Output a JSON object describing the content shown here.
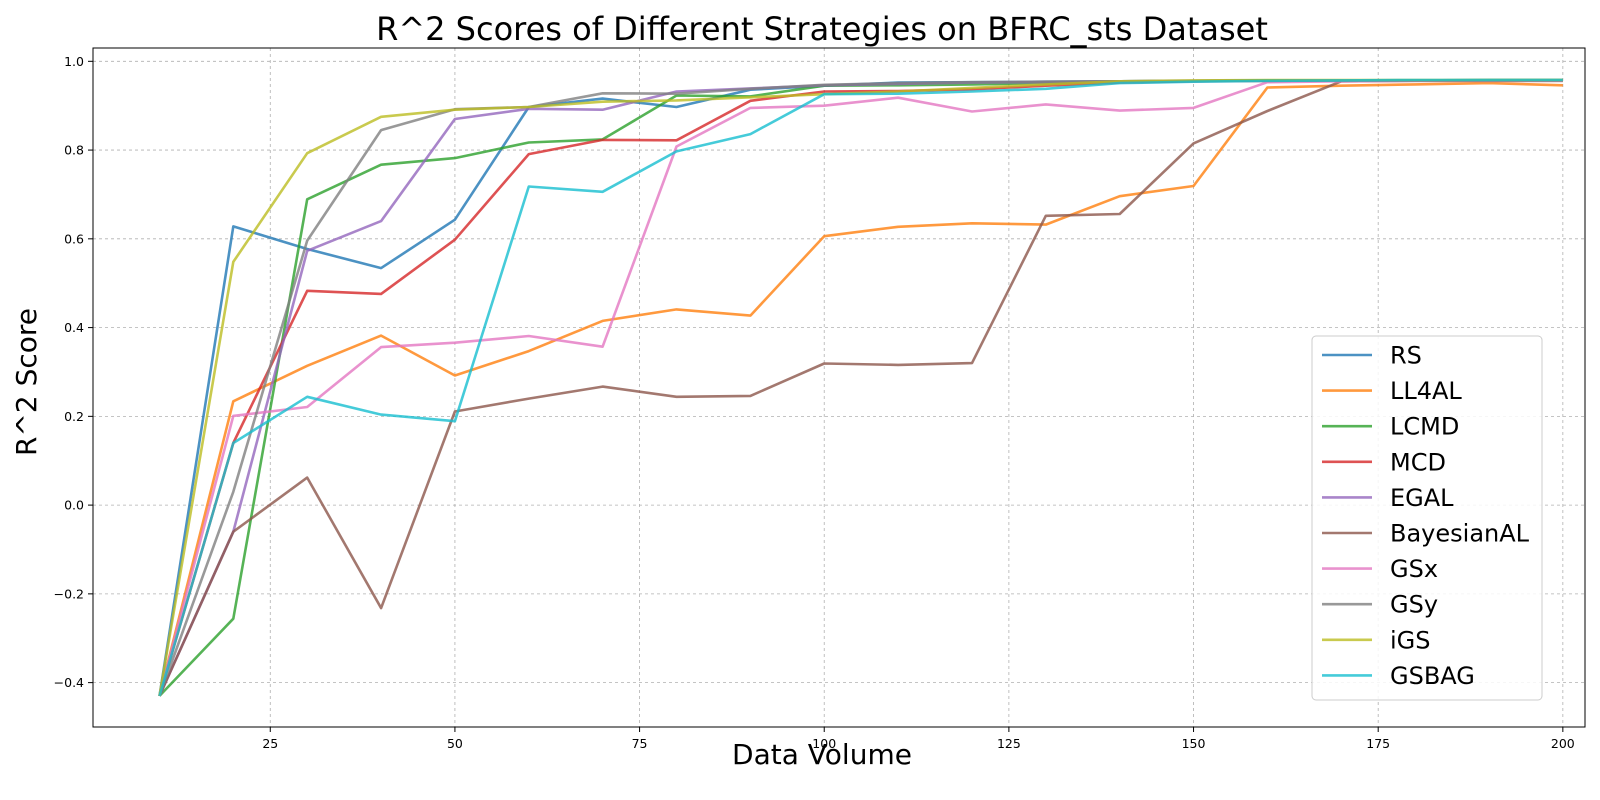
{
  "chart_data": {
    "type": "line",
    "title": "R^2 Scores of Different Strategies on BFRC_sts Dataset",
    "xlabel": "Data Volume",
    "ylabel": "R^2 Score",
    "xlim": [
      1,
      203
    ],
    "ylim": [
      -0.5,
      1.03
    ],
    "xticks": [
      25,
      50,
      75,
      100,
      125,
      150,
      175,
      200
    ],
    "yticks": [
      -0.4,
      -0.2,
      0.0,
      0.2,
      0.4,
      0.6,
      0.8,
      1.0
    ],
    "ytick_labels": [
      "−0.4",
      "−0.2",
      "0.0",
      "0.2",
      "0.4",
      "0.6",
      "0.8",
      "1.0"
    ],
    "grid": true,
    "legend_position": "lower-right",
    "x": [
      10,
      20,
      30,
      40,
      50,
      60,
      70,
      80,
      90,
      100,
      110,
      120,
      130,
      140,
      150,
      160,
      170,
      180,
      190,
      200
    ],
    "series": [
      {
        "name": "RS",
        "color": "#1f77b4",
        "values": [
          -0.43,
          0.628,
          0.577,
          0.534,
          0.643,
          0.897,
          0.916,
          0.897,
          0.936,
          0.945,
          0.952,
          0.953,
          0.954,
          0.955,
          0.956,
          0.957,
          0.957,
          0.957,
          0.958,
          0.958
        ]
      },
      {
        "name": "LL4AL",
        "color": "#ff7f0e",
        "values": [
          -0.43,
          0.234,
          0.314,
          0.382,
          0.292,
          0.347,
          0.415,
          0.441,
          0.427,
          0.606,
          0.627,
          0.635,
          0.632,
          0.696,
          0.719,
          0.941,
          0.945,
          0.948,
          0.951,
          0.946
        ]
      },
      {
        "name": "LCMD",
        "color": "#2ca02c",
        "values": [
          -0.43,
          -0.256,
          0.689,
          0.767,
          0.782,
          0.817,
          0.824,
          0.923,
          0.921,
          0.945,
          0.946,
          0.948,
          0.951,
          0.955,
          0.956,
          0.957,
          0.957,
          0.957,
          0.958,
          0.958
        ]
      },
      {
        "name": "MCD",
        "color": "#d62728",
        "values": [
          -0.43,
          0.14,
          0.483,
          0.476,
          0.598,
          0.791,
          0.823,
          0.822,
          0.911,
          0.932,
          0.933,
          0.937,
          0.945,
          0.952,
          0.955,
          0.956,
          0.957,
          0.957,
          0.957,
          0.957
        ]
      },
      {
        "name": "EGAL",
        "color": "#9467bd",
        "values": [
          -0.43,
          -0.06,
          0.573,
          0.64,
          0.87,
          0.893,
          0.891,
          0.932,
          0.939,
          0.946,
          0.949,
          0.952,
          0.953,
          0.955,
          0.956,
          0.956,
          0.957,
          0.957,
          0.957,
          0.957
        ]
      },
      {
        "name": "BayesianAL",
        "color": "#8c564b",
        "values": [
          -0.43,
          -0.06,
          0.062,
          -0.232,
          0.211,
          0.24,
          0.267,
          0.244,
          0.246,
          0.319,
          0.316,
          0.32,
          0.652,
          0.656,
          0.815,
          0.888,
          0.955,
          0.956,
          0.956,
          0.956
        ]
      },
      {
        "name": "GSx",
        "color": "#e377c2",
        "values": [
          -0.43,
          0.201,
          0.221,
          0.356,
          0.366,
          0.381,
          0.357,
          0.808,
          0.895,
          0.9,
          0.918,
          0.887,
          0.903,
          0.889,
          0.895,
          0.953,
          0.955,
          0.956,
          0.956,
          0.956
        ]
      },
      {
        "name": "GSy",
        "color": "#7f7f7f",
        "values": [
          -0.43,
          0.03,
          0.596,
          0.845,
          0.892,
          0.897,
          0.928,
          0.927,
          0.938,
          0.947,
          0.951,
          0.953,
          0.954,
          0.955,
          0.956,
          0.956,
          0.957,
          0.957,
          0.957,
          0.957
        ]
      },
      {
        "name": "iGS",
        "color": "#bcbd22",
        "values": [
          -0.43,
          0.548,
          0.793,
          0.875,
          0.891,
          0.897,
          0.909,
          0.912,
          0.919,
          0.926,
          0.932,
          0.94,
          0.948,
          0.955,
          0.957,
          0.958,
          0.958,
          0.958,
          0.958,
          0.958
        ]
      },
      {
        "name": "GSBAG",
        "color": "#17becf",
        "values": [
          -0.43,
          0.14,
          0.244,
          0.204,
          0.189,
          0.718,
          0.706,
          0.797,
          0.836,
          0.926,
          0.927,
          0.932,
          0.938,
          0.951,
          0.954,
          0.956,
          0.957,
          0.958,
          0.958,
          0.958
        ]
      }
    ]
  }
}
